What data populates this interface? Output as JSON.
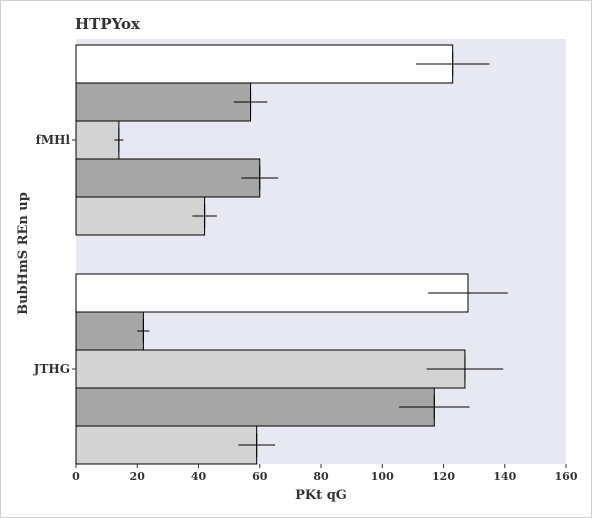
{
  "chart_data": {
    "type": "bar",
    "orientation": "horizontal",
    "title": "HTPYox",
    "xlabel": "PKt qG",
    "ylabel": "BubHmS REn up",
    "xlim": [
      0,
      160
    ],
    "x_ticks": [
      0,
      20,
      40,
      60,
      80,
      100,
      120,
      140,
      160
    ],
    "categories": [
      "fMHl",
      "JTHG"
    ],
    "grid": false,
    "legend": "none",
    "series": [
      {
        "color": "#ffffff",
        "values": [
          123,
          128
        ],
        "errors": [
          12,
          13
        ]
      },
      {
        "color": "#a6a6a6",
        "values": [
          57,
          22
        ],
        "errors": [
          5.5,
          2
        ]
      },
      {
        "color": "#d3d3d3",
        "values": [
          14,
          127
        ],
        "errors": [
          1.5,
          12.5
        ]
      },
      {
        "color": "#a6a6a6",
        "values": [
          60,
          117
        ],
        "errors": [
          6,
          11.5
        ]
      },
      {
        "color": "#d3d3d3",
        "values": [
          42,
          59
        ],
        "errors": [
          4,
          6
        ]
      }
    ],
    "background_color": "#e8e8f2"
  }
}
